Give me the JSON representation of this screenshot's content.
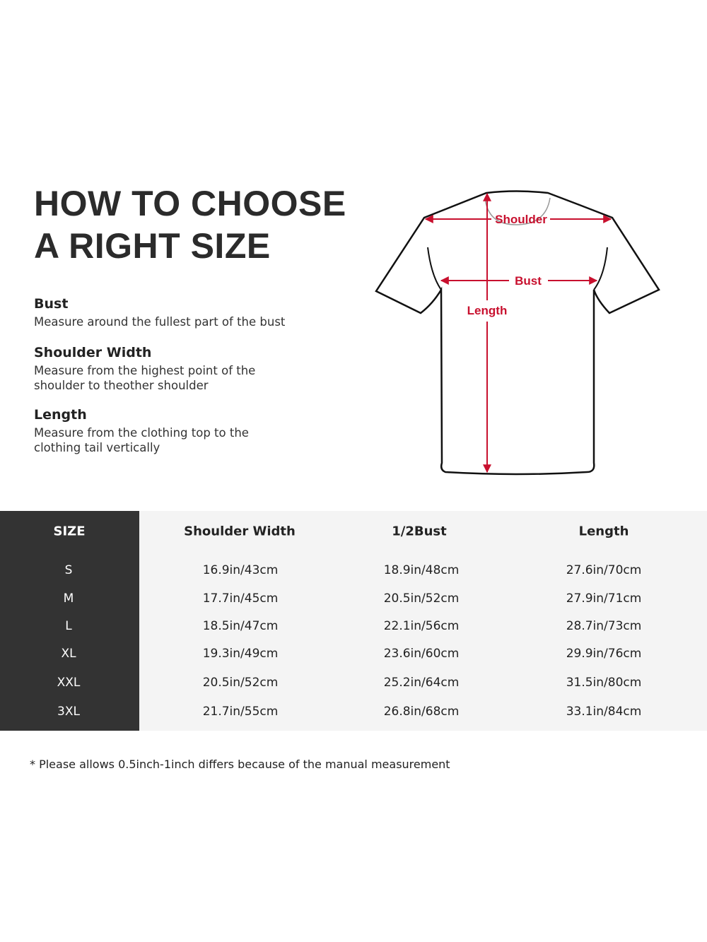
{
  "title_lines": [
    "HOW TO CHOOSE",
    "A RIGHT SIZE"
  ],
  "guide": [
    {
      "heading": "Bust",
      "text": "Measure around the fullest part of the bust"
    },
    {
      "heading": "Shoulder Width",
      "text": "Measure from the highest point of the shoulder to theother shoulder"
    },
    {
      "heading": "Length",
      "text": "Measure from the clothing top to the clothing tail vertically"
    }
  ],
  "diagram_labels": {
    "shoulder": "Shoulder",
    "bust": "Bust",
    "length": "Length"
  },
  "colors": {
    "arrow": "#c8102e",
    "size_column": "#333333",
    "table_bg": "#f4f4f4"
  },
  "table": {
    "headers": [
      "SIZE",
      "Shoulder Width",
      "1/2Bust",
      "Length"
    ],
    "rows": [
      [
        "S",
        "16.9in/43cm",
        "18.9in/48cm",
        "27.6in/70cm"
      ],
      [
        "M",
        "17.7in/45cm",
        "20.5in/52cm",
        "27.9in/71cm"
      ],
      [
        "L",
        "18.5in/47cm",
        "22.1in/56cm",
        "28.7in/73cm"
      ],
      [
        "XL",
        "19.3in/49cm",
        "23.6in/60cm",
        "29.9in/76cm"
      ],
      [
        "XXL",
        "20.5in/52cm",
        "25.2in/64cm",
        "31.5in/80cm"
      ],
      [
        "3XL",
        "21.7in/55cm",
        "26.8in/68cm",
        "33.1in/84cm"
      ]
    ]
  },
  "note": "* Please allows 0.5inch-1inch differs because of the  manual measurement"
}
